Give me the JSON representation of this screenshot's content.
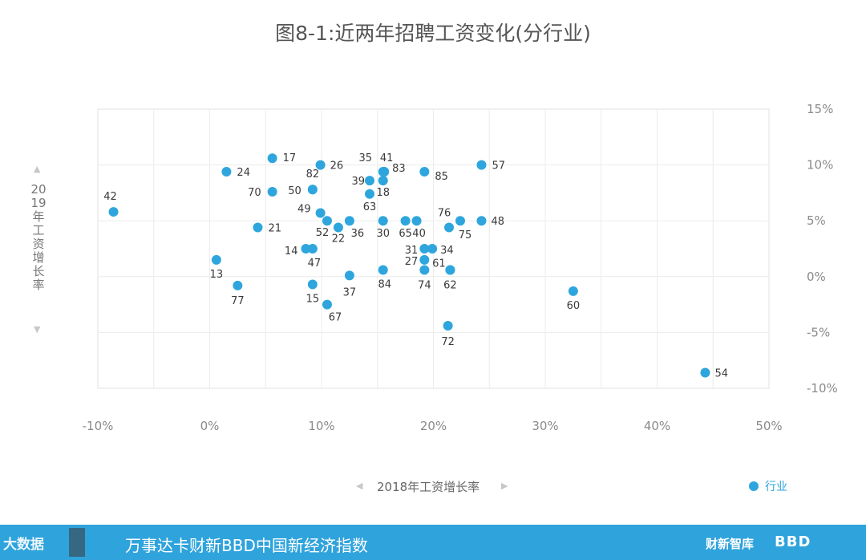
{
  "chart_data": {
    "type": "scatter",
    "title": "图8-1:近两年招聘工资变化(分行业)",
    "xlabel": "2018年工资增长率",
    "ylabel": "2019年工资增长率",
    "xlim": [
      -10,
      50
    ],
    "ylim": [
      -10,
      15
    ],
    "x_ticks": [
      "-10%",
      "0%",
      "10%",
      "20%",
      "30%",
      "40%",
      "50%"
    ],
    "y_ticks": [
      "15%",
      "10%",
      "5%",
      "0%",
      "-5%",
      "-10%"
    ],
    "legend": "行业",
    "legend_position": "bottom-right",
    "grid": true,
    "color": "#2ea6dd",
    "points": [
      {
        "label": "42",
        "x": -8.6,
        "y": 5.8
      },
      {
        "label": "13",
        "x": 0.6,
        "y": 1.5
      },
      {
        "label": "24",
        "x": 1.5,
        "y": 9.4
      },
      {
        "label": "77",
        "x": 2.5,
        "y": -0.8
      },
      {
        "label": "21",
        "x": 4.3,
        "y": 4.4
      },
      {
        "label": "17",
        "x": 5.6,
        "y": 10.6
      },
      {
        "label": "70",
        "x": 5.6,
        "y": 7.6
      },
      {
        "label": "14",
        "x": 8.6,
        "y": 2.5
      },
      {
        "label": "47",
        "x": 9.2,
        "y": 2.5
      },
      {
        "label": "82",
        "x": 9.2,
        "y": 7.8
      },
      {
        "label": "50",
        "x": 9.2,
        "y": 7.8
      },
      {
        "label": "15",
        "x": 9.2,
        "y": -0.7
      },
      {
        "label": "49",
        "x": 9.9,
        "y": 5.7
      },
      {
        "label": "26",
        "x": 9.9,
        "y": 10.0
      },
      {
        "label": "52",
        "x": 10.5,
        "y": 5.0
      },
      {
        "label": "67",
        "x": 10.5,
        "y": -2.5
      },
      {
        "label": "22",
        "x": 11.5,
        "y": 4.4
      },
      {
        "label": "36",
        "x": 12.5,
        "y": 5.0
      },
      {
        "label": "37",
        "x": 12.5,
        "y": 0.1
      },
      {
        "label": "39",
        "x": 14.3,
        "y": 8.6
      },
      {
        "label": "63",
        "x": 14.3,
        "y": 7.4
      },
      {
        "label": "35",
        "x": 15.5,
        "y": 9.4
      },
      {
        "label": "18",
        "x": 15.5,
        "y": 8.6
      },
      {
        "label": "30",
        "x": 15.5,
        "y": 5.0
      },
      {
        "label": "84",
        "x": 15.5,
        "y": 0.6
      },
      {
        "label": "65",
        "x": 17.5,
        "y": 5.0
      },
      {
        "label": "40",
        "x": 18.5,
        "y": 5.0
      },
      {
        "label": "85",
        "x": 19.2,
        "y": 9.4
      },
      {
        "label": "31",
        "x": 19.2,
        "y": 2.5
      },
      {
        "label": "34",
        "x": 19.9,
        "y": 2.5
      },
      {
        "label": "27",
        "x": 19.2,
        "y": 1.5
      },
      {
        "label": "74",
        "x": 19.2,
        "y": 0.6
      },
      {
        "label": "76",
        "x": 21.4,
        "y": 4.4
      },
      {
        "label": "61",
        "x": 21.5,
        "y": 0.6
      },
      {
        "label": "72",
        "x": 21.3,
        "y": -4.4
      },
      {
        "label": "75",
        "x": 22.4,
        "y": 5.0
      },
      {
        "label": "57",
        "x": 24.3,
        "y": 10.0
      },
      {
        "label": "48",
        "x": 24.3,
        "y": 5.0
      },
      {
        "label": "60",
        "x": 32.5,
        "y": -1.3
      },
      {
        "label": "54",
        "x": 44.3,
        "y": -8.6
      },
      {
        "label": "41",
        "x": 15.6,
        "y": 9.4
      },
      {
        "label": "83",
        "x": 15.6,
        "y": 9.4
      },
      {
        "label": "62",
        "x": 21.5,
        "y": 0.6
      }
    ]
  },
  "footer": {
    "left_logo": "大数据",
    "text": "万事达卡财新BBD中国新经济指数",
    "right_logo_1": "财新智库",
    "right_logo_2": "BBD"
  }
}
